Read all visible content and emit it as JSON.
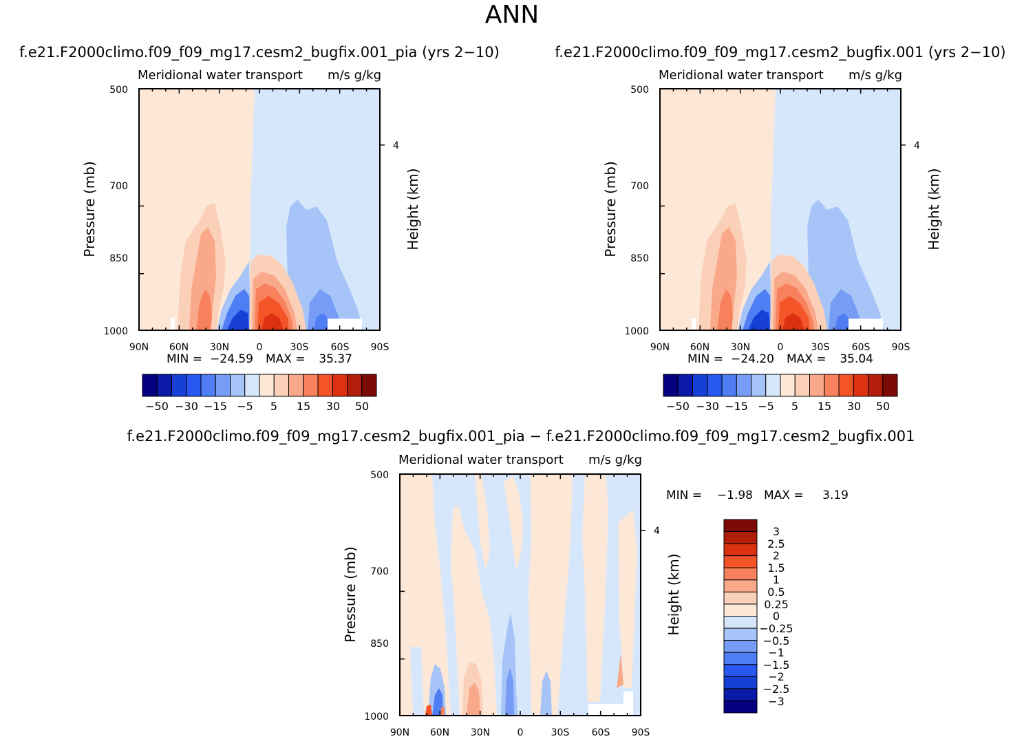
{
  "page_title": "ANN",
  "chart_data": [
    {
      "type": "heatmap",
      "title": "f.e21.F2000climo.f09_f09_mg17.cesm2_bugfix.001_pia (yrs 2−10)",
      "subtitle_left": "Meridional water transport",
      "subtitle_right": "m/s g/kg",
      "ylabel": "Pressure (mb)",
      "ylabel_right": "Height (km)",
      "x_ticks": [
        "90N",
        "60N",
        "30N",
        "0",
        "30S",
        "60S",
        "90S"
      ],
      "y_ticks": [
        "500",
        "700",
        "850",
        "1000"
      ],
      "y_ticks_right": [
        "4"
      ],
      "ylim": [
        1000,
        500
      ],
      "min_label": "MIN =",
      "min_value": "−24.59",
      "max_label": "MAX =",
      "max_value": "35.37",
      "colorbar": {
        "orientation": "horizontal",
        "colors": [
          "#05007e",
          "#0b1aa8",
          "#1640d6",
          "#2857f2",
          "#4f7df4",
          "#779cf5",
          "#a6c4f7",
          "#d7e7fb",
          "#fde8d8",
          "#fbd0b8",
          "#f9a98a",
          "#f7815d",
          "#f45528",
          "#dd3212",
          "#b11f0a",
          "#7c0a05"
        ],
        "labels": [
          "−50",
          "−30",
          "−15",
          "−5",
          "5",
          "15",
          "30",
          "50"
        ]
      }
    },
    {
      "type": "heatmap",
      "title": "f.e21.F2000climo.f09_f09_mg17.cesm2_bugfix.001 (yrs 2−10)",
      "subtitle_left": "Meridional water transport",
      "subtitle_right": "m/s g/kg",
      "ylabel": "Pressure (mb)",
      "ylabel_right": "Height (km)",
      "x_ticks": [
        "90N",
        "60N",
        "30N",
        "0",
        "30S",
        "60S",
        "90S"
      ],
      "y_ticks": [
        "500",
        "700",
        "850",
        "1000"
      ],
      "y_ticks_right": [
        "4"
      ],
      "ylim": [
        1000,
        500
      ],
      "min_label": "MIN =",
      "min_value": "−24.20",
      "max_label": "MAX =",
      "max_value": "35.04",
      "colorbar": {
        "orientation": "horizontal",
        "colors": [
          "#05007e",
          "#0b1aa8",
          "#1640d6",
          "#2857f2",
          "#4f7df4",
          "#779cf5",
          "#a6c4f7",
          "#d7e7fb",
          "#fde8d8",
          "#fbd0b8",
          "#f9a98a",
          "#f7815d",
          "#f45528",
          "#dd3212",
          "#b11f0a",
          "#7c0a05"
        ],
        "labels": [
          "−50",
          "−30",
          "−15",
          "−5",
          "5",
          "15",
          "30",
          "50"
        ]
      }
    },
    {
      "type": "heatmap",
      "title": "f.e21.F2000climo.f09_f09_mg17.cesm2_bugfix.001_pia − f.e21.F2000climo.f09_f09_mg17.cesm2_bugfix.001",
      "subtitle_left": "Meridional water transport",
      "subtitle_right": "m/s g/kg",
      "ylabel": "Pressure (mb)",
      "ylabel_right": "Height (km)",
      "x_ticks": [
        "90N",
        "60N",
        "30N",
        "0",
        "30S",
        "60S",
        "90S"
      ],
      "y_ticks": [
        "500",
        "700",
        "850",
        "1000"
      ],
      "y_ticks_right": [
        "4"
      ],
      "ylim": [
        1000,
        500
      ],
      "min_label": "MIN =",
      "min_value": "−1.98",
      "max_label": "MAX =",
      "max_value": "3.19",
      "colorbar": {
        "orientation": "vertical",
        "colors": [
          "#7c0a05",
          "#b11f0a",
          "#dd3212",
          "#f45528",
          "#f7815d",
          "#f9a98a",
          "#fbd0b8",
          "#fde8d8",
          "#d7e7fb",
          "#a6c4f7",
          "#779cf5",
          "#4f7df4",
          "#2857f2",
          "#1640d6",
          "#0b1aa8",
          "#05007e"
        ],
        "labels": [
          "3",
          "2.5",
          "2",
          "1.5",
          "1",
          "0.5",
          "0.25",
          "0",
          "−0.25",
          "−0.5",
          "−1",
          "−1.5",
          "−2",
          "−2.5",
          "−3"
        ]
      }
    }
  ]
}
